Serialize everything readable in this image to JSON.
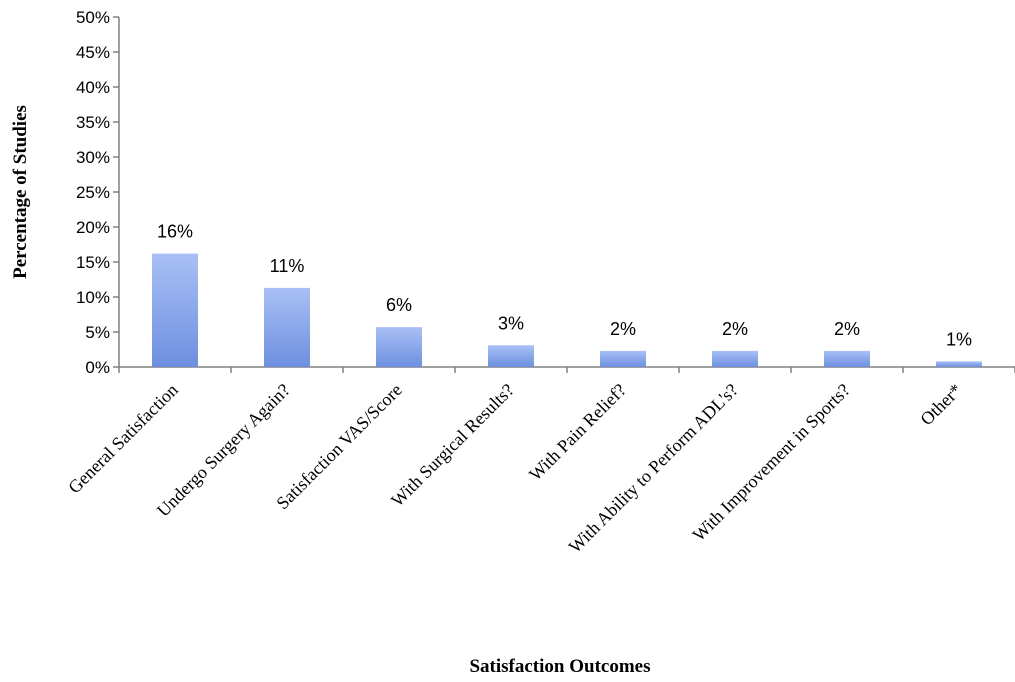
{
  "chart_data": {
    "type": "bar",
    "title": "",
    "xlabel": "Satisfaction Outcomes",
    "ylabel": "Percentage of Studies",
    "categories": [
      "General Satisfaction",
      "Undergo Surgery Again?",
      "Satisfaction VAS/Score",
      "With Surgical Results?",
      "With Pain Relief?",
      "With Ability to Perform ADL's?",
      "With Improvement in Sports?",
      "Other*"
    ],
    "values": [
      16.2,
      11.3,
      5.7,
      3.1,
      2.3,
      2.3,
      2.3,
      0.8
    ],
    "data_labels": [
      "16%",
      "11%",
      "6%",
      "3%",
      "2%",
      "2%",
      "2%",
      "1%"
    ],
    "y_ticks": [
      0,
      5,
      10,
      15,
      20,
      25,
      30,
      35,
      40,
      45,
      50
    ],
    "y_tick_labels": [
      "0%",
      "5%",
      "10%",
      "15%",
      "20%",
      "25%",
      "30%",
      "35%",
      "40%",
      "45%",
      "50%"
    ],
    "ylim": [
      0,
      50
    ],
    "grid": false,
    "legend": "none",
    "colors": {
      "bar_top": "#a9c0f5",
      "bar_bottom": "#6e8fe0",
      "axis": "#808080"
    }
  }
}
